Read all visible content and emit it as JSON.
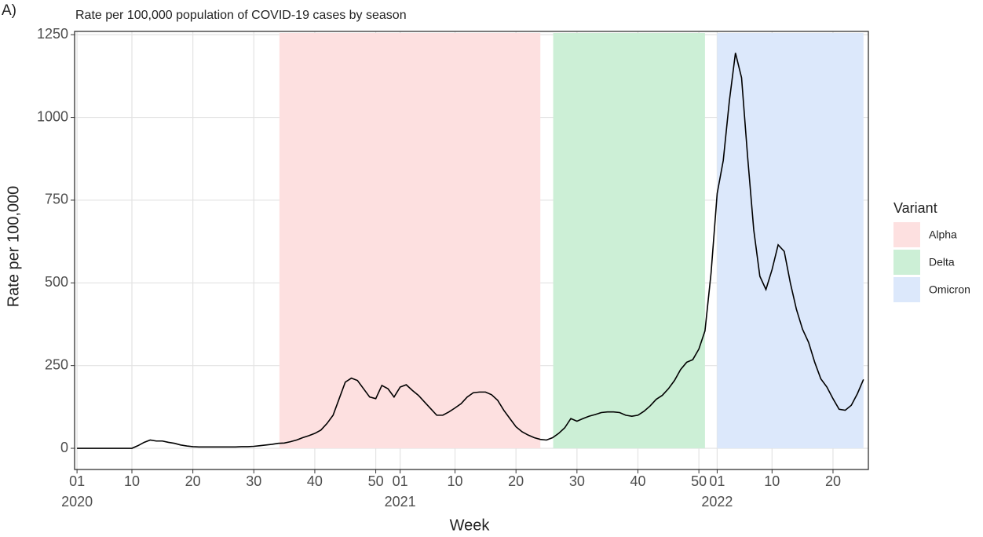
{
  "panel_label": "A)",
  "chart_data": {
    "type": "line",
    "title": "Rate per 100,000 population of COVID-19 cases by season",
    "x_label": "Week",
    "y_label": "Rate per 100,000",
    "x": [
      1,
      2,
      3,
      4,
      5,
      6,
      7,
      8,
      9,
      10,
      11,
      12,
      13,
      14,
      15,
      16,
      17,
      18,
      19,
      20,
      21,
      22,
      23,
      24,
      25,
      26,
      27,
      28,
      29,
      30,
      31,
      32,
      33,
      34,
      35,
      36,
      37,
      38,
      39,
      40,
      41,
      42,
      43,
      44,
      45,
      46,
      47,
      48,
      49,
      50,
      51,
      52,
      53,
      54,
      55,
      56,
      57,
      58,
      59,
      60,
      61,
      62,
      63,
      64,
      65,
      66,
      67,
      68,
      69,
      70,
      71,
      72,
      73,
      74,
      75,
      76,
      77,
      78,
      79,
      80,
      81,
      82,
      83,
      84,
      85,
      86,
      87,
      88,
      89,
      90,
      91,
      92,
      93,
      94,
      95,
      96,
      97,
      98,
      99,
      100,
      101,
      102,
      103,
      104,
      105,
      106,
      107,
      108,
      109,
      110,
      111,
      112,
      113,
      114,
      115,
      116,
      117,
      118,
      119,
      120,
      121,
      122,
      123,
      124,
      125,
      126,
      127,
      128,
      129,
      130
    ],
    "series": [
      {
        "name": "Rate",
        "color": "#000000",
        "values": [
          0,
          0,
          0,
          0,
          0,
          0,
          0,
          0,
          0,
          0,
          8,
          18,
          25,
          22,
          22,
          18,
          15,
          10,
          7,
          5,
          4,
          4,
          4,
          4,
          4,
          4,
          4,
          5,
          5,
          6,
          8,
          10,
          12,
          15,
          16,
          20,
          25,
          32,
          38,
          45,
          55,
          75,
          100,
          150,
          200,
          212,
          205,
          180,
          155,
          150,
          190,
          180,
          155,
          185,
          192,
          175,
          160,
          140,
          120,
          100,
          100,
          110,
          122,
          135,
          155,
          168,
          170,
          170,
          162,
          145,
          115,
          90,
          65,
          50,
          40,
          32,
          27,
          25,
          32,
          45,
          62,
          90,
          82,
          90,
          97,
          102,
          108,
          110,
          110,
          108,
          100,
          97,
          100,
          112,
          128,
          148,
          160,
          180,
          205,
          238,
          260,
          268,
          300,
          355,
          530,
          770,
          870,
          1050,
          1195,
          1120,
          880,
          660,
          520,
          480,
          540,
          615,
          595,
          500,
          420,
          360,
          320,
          260,
          210,
          185,
          150,
          118,
          115,
          130,
          165,
          208
        ]
      }
    ],
    "bands": [
      {
        "name": "Alpha",
        "start": 34.2,
        "end": 77,
        "color": "#fde0e0"
      },
      {
        "name": "Delta",
        "start": 79.1,
        "end": 104,
        "color": "#ccefd6"
      },
      {
        "name": "Omicron",
        "start": 106,
        "end": 130,
        "color": "#dce8fb"
      }
    ],
    "legend_title": "Variant",
    "xlim": [
      0.6,
      130.8
    ],
    "ylim": [
      -64,
      1260
    ],
    "xticks": [
      {
        "value": 1,
        "label": "01"
      },
      {
        "value": 10,
        "label": "10"
      },
      {
        "value": 20,
        "label": "20"
      },
      {
        "value": 30,
        "label": "30"
      },
      {
        "value": 40,
        "label": "40"
      },
      {
        "value": 50,
        "label": "50"
      },
      {
        "value": 54,
        "label": "01"
      },
      {
        "value": 63,
        "label": "10"
      },
      {
        "value": 73,
        "label": "20"
      },
      {
        "value": 83,
        "label": "30"
      },
      {
        "value": 93,
        "label": "40"
      },
      {
        "value": 103,
        "label": "50"
      },
      {
        "value": 106,
        "label": "01"
      },
      {
        "value": 115,
        "label": "10"
      },
      {
        "value": 125,
        "label": "20"
      }
    ],
    "x_year_labels": [
      {
        "value": 1,
        "label": "2020"
      },
      {
        "value": 54,
        "label": "2021"
      },
      {
        "value": 106,
        "label": "2022"
      }
    ],
    "yticks": [
      0,
      250,
      500,
      750,
      1000,
      1250
    ],
    "grid": true
  }
}
